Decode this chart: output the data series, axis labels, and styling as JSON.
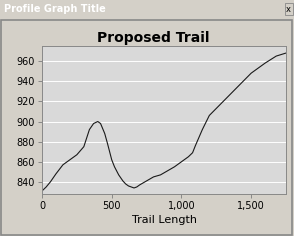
{
  "title": "Proposed Trail",
  "xlabel": "Trail Length",
  "window_title": "Profile Graph Title",
  "xlim": [
    0,
    1750
  ],
  "ylim": [
    828,
    975
  ],
  "yticks": [
    840,
    860,
    880,
    900,
    920,
    940,
    960
  ],
  "xticks": [
    0,
    500,
    1000,
    1500
  ],
  "xticklabels": [
    "0",
    "500",
    "1,000",
    "1,500"
  ],
  "titlebar_color": "#000080",
  "titlebar_text_color": "#ffffff",
  "outer_bg_color": "#d4d0c8",
  "plot_bg_color": "#d9d9d9",
  "line_color": "#1a1a1a",
  "title_fontsize": 10,
  "axis_fontsize": 7,
  "xlabel_fontsize": 8,
  "titlebar_fontsize": 7,
  "x": [
    0,
    30,
    60,
    100,
    150,
    200,
    250,
    300,
    340,
    370,
    400,
    420,
    450,
    470,
    500,
    520,
    550,
    580,
    600,
    620,
    640,
    660,
    680,
    700,
    750,
    800,
    850,
    900,
    950,
    1000,
    1020,
    1050,
    1080,
    1100,
    1150,
    1200,
    1300,
    1400,
    1500,
    1600,
    1680,
    1750
  ],
  "y": [
    831,
    835,
    840,
    848,
    857,
    862,
    867,
    875,
    892,
    898,
    900,
    898,
    888,
    878,
    862,
    855,
    847,
    841,
    838,
    836,
    835,
    834,
    835,
    837,
    841,
    845,
    847,
    851,
    855,
    860,
    862,
    865,
    869,
    876,
    892,
    906,
    920,
    934,
    948,
    958,
    965,
    968
  ]
}
